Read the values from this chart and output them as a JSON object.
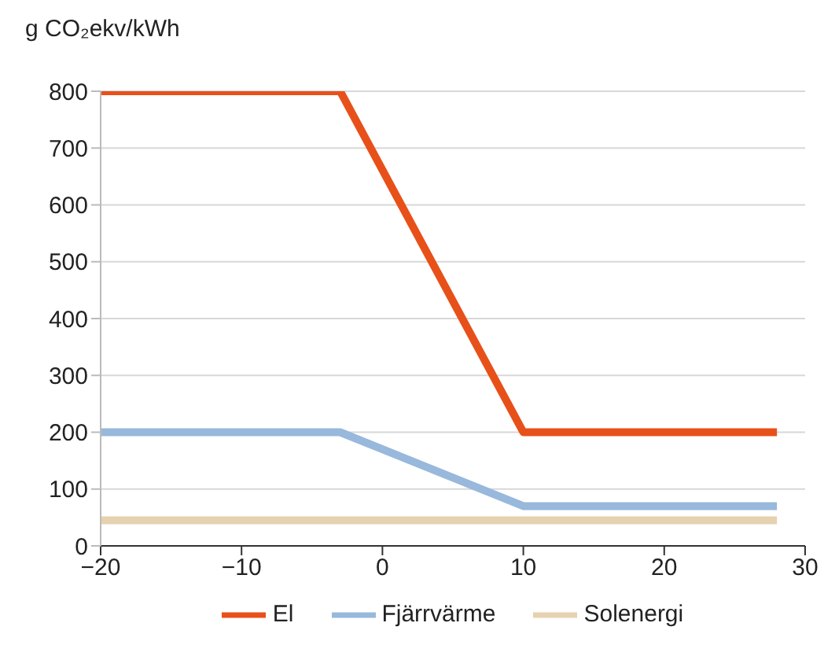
{
  "chart_data": {
    "type": "line",
    "ylabel": "g CO₂ekv/kWh",
    "xlim": [
      -20,
      30
    ],
    "xticks": [
      {
        "value": -20,
        "label": "−20"
      },
      {
        "value": -10,
        "label": "−10"
      },
      0,
      10,
      20,
      30
    ],
    "ylim": [
      0,
      800
    ],
    "yticks": [
      0,
      100,
      200,
      300,
      400,
      500,
      600,
      700,
      800
    ],
    "series": [
      {
        "name": "El",
        "color": "#e8501a",
        "x": [
          -20,
          -3,
          10,
          28
        ],
        "values": [
          800,
          800,
          200,
          200
        ]
      },
      {
        "name": "Fjärrvärme",
        "color": "#98b8dc",
        "x": [
          -20,
          -3,
          10,
          28
        ],
        "values": [
          200,
          200,
          70,
          70
        ]
      },
      {
        "name": "Solenergi",
        "color": "#e6d2b0",
        "x": [
          -20,
          28
        ],
        "values": [
          45,
          45
        ]
      }
    ],
    "grid": "y",
    "legend": "bottom",
    "marker": "none",
    "line_style": "solid"
  }
}
